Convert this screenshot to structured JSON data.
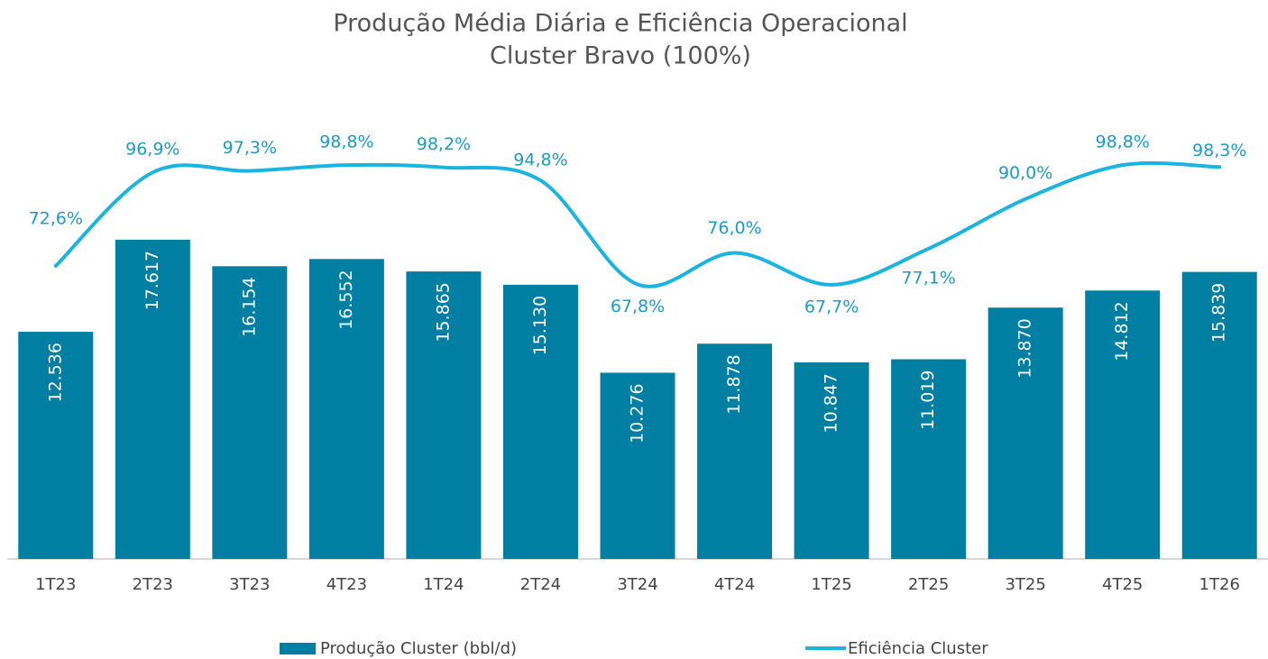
{
  "chart_data": {
    "type": "bar+line",
    "title": "Produção Média Diária e Eficiência Operacional",
    "subtitle": "Cluster Bravo (100%)",
    "categories": [
      "1T23",
      "2T23",
      "3T23",
      "4T23",
      "1T24",
      "2T24",
      "3T24",
      "4T24",
      "1T25",
      "2T25",
      "3T25",
      "4T25",
      "1T26"
    ],
    "series": [
      {
        "name": "Produção Cluster (bbl/d)",
        "type": "bar",
        "color": "#007fa3",
        "values": [
          12536,
          17617,
          16154,
          16552,
          15865,
          15130,
          10276,
          11878,
          10847,
          11019,
          13870,
          14812,
          15839
        ],
        "value_labels": [
          "12.536",
          "17.617",
          "16.154",
          "16.552",
          "15.865",
          "15.130",
          "10.276",
          "11.878",
          "10.847",
          "11.019",
          "13.870",
          "14.812",
          "15.839"
        ]
      },
      {
        "name": "Eficiência Cluster",
        "type": "line",
        "axis": "y2",
        "color": "#1ab4e0",
        "values": [
          72.6,
          96.9,
          97.3,
          98.8,
          98.2,
          94.8,
          67.8,
          76.0,
          67.7,
          77.1,
          90.0,
          98.8,
          98.3
        ],
        "value_labels": [
          "72,6%",
          "96,9%",
          "97,3%",
          "98,8%",
          "98,2%",
          "94,8%",
          "67,8%",
          "76,0%",
          "67,7%",
          "77,1%",
          "90,0%",
          "98,8%",
          "98,3%"
        ]
      }
    ],
    "ylim": [
      0,
      20000
    ],
    "y2lim": [
      0,
      100
    ],
    "legend": "bottom"
  }
}
